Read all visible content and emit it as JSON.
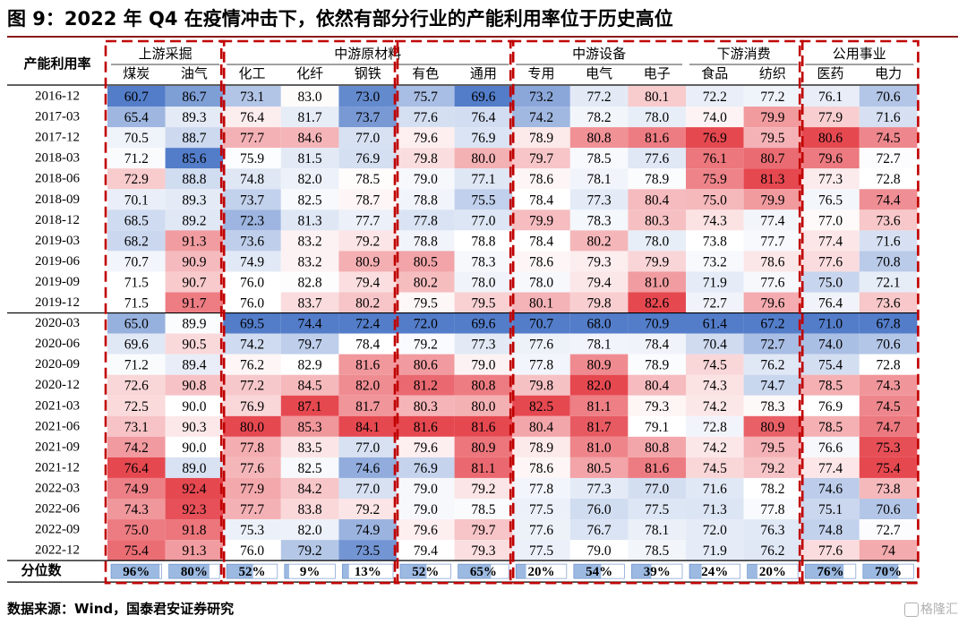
{
  "title": "图 9：2022 年 Q4 在疫情冲击下，依然有部分行业的产能利用率位于历史高位",
  "source": "数据来源：Wind，国泰君安证券研究",
  "watermark": "格隆汇",
  "chart_data": {
    "type": "table",
    "row_header": "产能利用率",
    "groups": [
      {
        "name": "上游采掘",
        "columns": [
          "煤炭",
          "油气"
        ]
      },
      {
        "name": "中游原材料",
        "columns": [
          "化工",
          "化纤",
          "钢铁",
          "有色",
          "通用"
        ]
      },
      {
        "name": "中游设备",
        "columns": [
          "专用",
          "电气",
          "电子"
        ]
      },
      {
        "name": "下游消费",
        "columns": [
          "食品",
          "纺织"
        ]
      },
      {
        "name": "公用事业",
        "columns": [
          "医药",
          "电力"
        ]
      }
    ],
    "columns": [
      "煤炭",
      "油气",
      "化工",
      "化纤",
      "钢铁",
      "有色",
      "通用",
      "专用",
      "电气",
      "电子",
      "食品",
      "纺织",
      "医药",
      "电力"
    ],
    "rows": [
      {
        "period": "2016-12",
        "values": [
          "60.7",
          "86.7",
          "73.1",
          "83.0",
          "73.0",
          "75.7",
          "69.6",
          "73.2",
          "77.2",
          "80.1",
          "72.2",
          "77.2",
          "76.1",
          "70.6"
        ]
      },
      {
        "period": "2017-03",
        "values": [
          "65.4",
          "89.3",
          "76.4",
          "81.7",
          "73.7",
          "77.6",
          "76.4",
          "74.2",
          "78.2",
          "78.0",
          "74.0",
          "79.9",
          "77.9",
          "71.6"
        ]
      },
      {
        "period": "2017-12",
        "values": [
          "70.5",
          "88.7",
          "77.7",
          "84.6",
          "77.0",
          "79.6",
          "76.9",
          "78.9",
          "80.8",
          "81.6",
          "76.9",
          "79.5",
          "80.6",
          "74.5"
        ]
      },
      {
        "period": "2018-03",
        "values": [
          "71.2",
          "85.6",
          "75.9",
          "81.5",
          "76.9",
          "79.8",
          "80.0",
          "79.7",
          "78.5",
          "77.6",
          "76.1",
          "80.7",
          "79.6",
          "72.7"
        ]
      },
      {
        "period": "2018-06",
        "values": [
          "72.9",
          "88.8",
          "74.8",
          "82.0",
          "78.5",
          "79.0",
          "77.1",
          "78.6",
          "78.1",
          "78.9",
          "75.9",
          "81.3",
          "77.3",
          "72.8"
        ]
      },
      {
        "period": "2018-09",
        "values": [
          "70.1",
          "89.3",
          "73.7",
          "82.5",
          "78.7",
          "78.8",
          "75.5",
          "78.4",
          "77.3",
          "80.4",
          "75.0",
          "79.9",
          "76.5",
          "74.4"
        ]
      },
      {
        "period": "2018-12",
        "values": [
          "68.5",
          "89.2",
          "72.3",
          "81.3",
          "77.7",
          "77.8",
          "77.0",
          "79.9",
          "78.3",
          "80.3",
          "74.3",
          "77.4",
          "77.0",
          "73.6"
        ]
      },
      {
        "period": "2019-03",
        "values": [
          "68.2",
          "91.3",
          "73.6",
          "83.2",
          "79.2",
          "78.8",
          "78.8",
          "78.4",
          "80.2",
          "78.0",
          "73.8",
          "77.7",
          "77.4",
          "71.6"
        ]
      },
      {
        "period": "2019-06",
        "values": [
          "70.7",
          "90.9",
          "74.9",
          "83.2",
          "80.9",
          "80.5",
          "78.3",
          "78.6",
          "79.3",
          "79.9",
          "73.2",
          "78.6",
          "77.6",
          "70.8"
        ]
      },
      {
        "period": "2019-09",
        "values": [
          "71.5",
          "90.7",
          "76.0",
          "82.8",
          "79.4",
          "80.2",
          "78.0",
          "78.0",
          "79.4",
          "81.0",
          "71.9",
          "77.6",
          "75.0",
          "72.1"
        ]
      },
      {
        "period": "2019-12",
        "values": [
          "71.5",
          "91.7",
          "76.0",
          "83.7",
          "80.2",
          "79.5",
          "79.5",
          "80.1",
          "79.8",
          "82.6",
          "72.7",
          "79.6",
          "76.4",
          "73.6"
        ]
      },
      {
        "period": "2020-03",
        "values": [
          "65.0",
          "89.9",
          "69.5",
          "74.4",
          "72.4",
          "72.0",
          "69.6",
          "70.7",
          "68.0",
          "70.9",
          "61.4",
          "67.2",
          "71.0",
          "67.8"
        ]
      },
      {
        "period": "2020-06",
        "values": [
          "69.6",
          "90.5",
          "74.2",
          "79.7",
          "78.4",
          "79.2",
          "77.3",
          "77.6",
          "78.1",
          "78.4",
          "70.4",
          "72.7",
          "74.0",
          "70.6"
        ]
      },
      {
        "period": "2020-09",
        "values": [
          "71.2",
          "89.4",
          "76.2",
          "82.9",
          "81.6",
          "80.6",
          "79.0",
          "77.8",
          "80.9",
          "78.9",
          "74.5",
          "76.2",
          "75.4",
          "72.8"
        ]
      },
      {
        "period": "2020-12",
        "values": [
          "72.6",
          "90.8",
          "77.2",
          "84.5",
          "82.0",
          "81.2",
          "80.8",
          "79.8",
          "82.0",
          "80.4",
          "74.3",
          "74.7",
          "78.5",
          "74.3"
        ]
      },
      {
        "period": "2021-03",
        "values": [
          "72.5",
          "90.0",
          "76.9",
          "87.1",
          "81.7",
          "80.3",
          "80.0",
          "82.5",
          "81.1",
          "79.3",
          "74.2",
          "78.3",
          "76.9",
          "74.5"
        ]
      },
      {
        "period": "2021-06",
        "values": [
          "73.1",
          "90.3",
          "80.0",
          "85.3",
          "84.1",
          "81.6",
          "81.6",
          "80.4",
          "81.7",
          "79.1",
          "72.8",
          "80.9",
          "78.5",
          "74.7"
        ]
      },
      {
        "period": "2021-09",
        "values": [
          "74.2",
          "90.0",
          "77.8",
          "83.5",
          "77.0",
          "79.6",
          "80.9",
          "78.9",
          "81.0",
          "80.8",
          "74.2",
          "79.5",
          "76.6",
          "75.3"
        ]
      },
      {
        "period": "2021-12",
        "values": [
          "76.4",
          "89.0",
          "77.6",
          "82.5",
          "74.6",
          "76.9",
          "81.1",
          "78.6",
          "80.5",
          "81.6",
          "74.5",
          "79.2",
          "77.4",
          "75.4"
        ]
      },
      {
        "period": "2022-03",
        "values": [
          "74.9",
          "92.4",
          "77.9",
          "84.2",
          "77.0",
          "79.0",
          "79.2",
          "77.8",
          "77.3",
          "77.0",
          "71.6",
          "78.2",
          "74.6",
          "73.8"
        ]
      },
      {
        "period": "2022-06",
        "values": [
          "74.3",
          "92.3",
          "77.7",
          "83.8",
          "79.2",
          "79.0",
          "78.5",
          "77.5",
          "76.0",
          "77.5",
          "71.3",
          "77.8",
          "75.1",
          "70.6"
        ]
      },
      {
        "period": "2022-09",
        "values": [
          "75.0",
          "91.8",
          "75.3",
          "82.0",
          "74.9",
          "79.6",
          "79.7",
          "77.6",
          "76.7",
          "78.1",
          "72.0",
          "76.3",
          "74.8",
          "72.7"
        ]
      },
      {
        "period": "2022-12",
        "values": [
          "75.4",
          "91.3",
          "76.0",
          "79.2",
          "73.5",
          "79.4",
          "79.3",
          "77.5",
          "79.0",
          "78.5",
          "71.9",
          "76.2",
          "77.6",
          "74"
        ]
      }
    ],
    "percentile_label": "分位数",
    "percentiles": [
      "96%",
      "80%",
      "52%",
      "9%",
      "13%",
      "52%",
      "65%",
      "20%",
      "54%",
      "39%",
      "24%",
      "20%",
      "76%",
      "70%"
    ],
    "colors": {
      "low": "#4472c4",
      "mid": "#ffffff",
      "high": "#e0202a",
      "dashed_border": "#c00000",
      "percentile_bar": "#4a7fc8"
    },
    "grid": false
  }
}
